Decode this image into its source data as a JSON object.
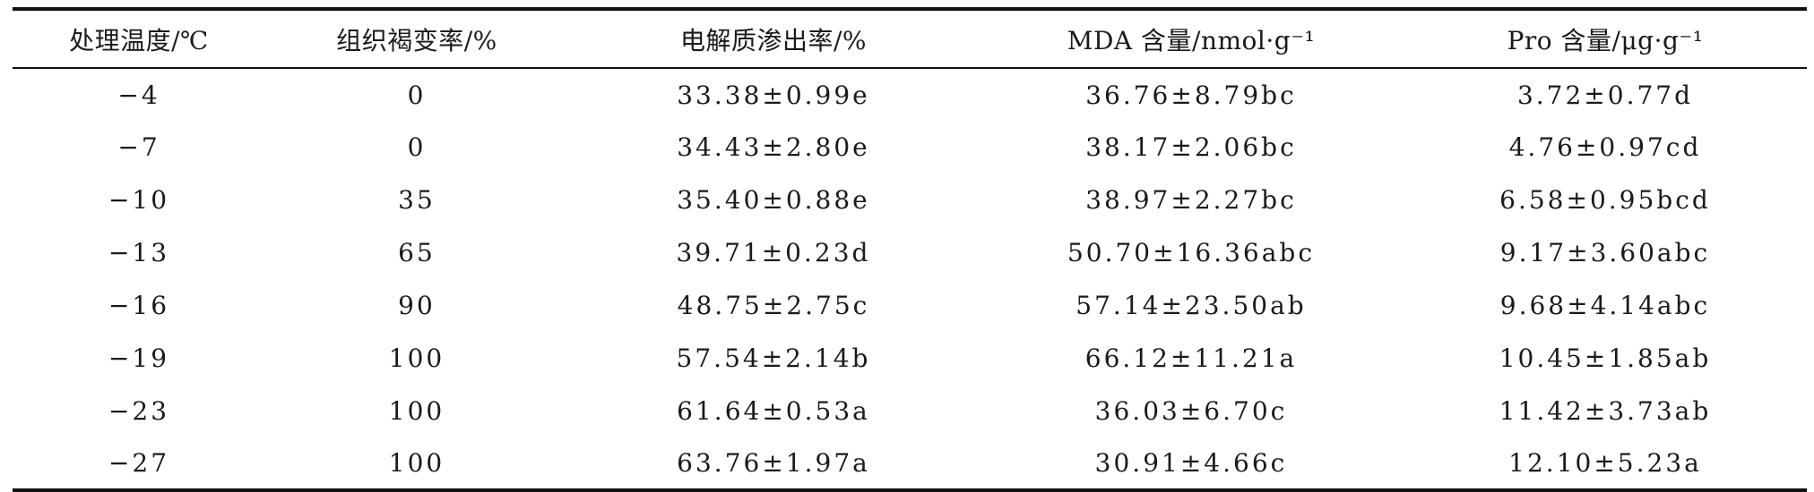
{
  "table": {
    "headers": [
      "处理温度/℃",
      "组织褐变率/%",
      "电解质渗出率/%",
      "MDA 含量/nmol·g⁻¹",
      "Pro 含量/μg·g⁻¹"
    ],
    "rows": [
      [
        "−4",
        "0",
        "33.38±0.99e",
        "36.76±8.79bc",
        "3.72±0.77d"
      ],
      [
        "−7",
        "0",
        "34.43±2.80e",
        "38.17±2.06bc",
        "4.76±0.97cd"
      ],
      [
        "−10",
        "35",
        "35.40±0.88e",
        "38.97±2.27bc",
        "6.58±0.95bcd"
      ],
      [
        "−13",
        "65",
        "39.71±0.23d",
        "50.70±16.36abc",
        "9.17±3.60abc"
      ],
      [
        "−16",
        "90",
        "48.75±2.75c",
        "57.14±23.50ab",
        "9.68±4.14abc"
      ],
      [
        "−19",
        "100",
        "57.54±2.14b",
        "66.12±11.21a",
        "10.45±1.85ab"
      ],
      [
        "−23",
        "100",
        "61.64±0.53a",
        "36.03±6.70c",
        "11.42±3.73ab"
      ],
      [
        "−27",
        "100",
        "63.76±1.97a",
        "30.91±4.66c",
        "12.10±5.23a"
      ]
    ]
  }
}
